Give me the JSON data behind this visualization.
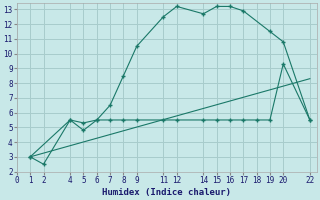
{
  "xlabel": "Humidex (Indice chaleur)",
  "bg_color": "#c8e8e8",
  "grid_color": "#a8cccc",
  "line_color": "#1a7868",
  "xlim": [
    0,
    22.5
  ],
  "ylim": [
    2,
    13.4
  ],
  "xticks": [
    0,
    1,
    2,
    4,
    5,
    6,
    7,
    8,
    9,
    11,
    12,
    14,
    15,
    16,
    17,
    18,
    19,
    20,
    22
  ],
  "yticks": [
    2,
    3,
    4,
    5,
    6,
    7,
    8,
    9,
    10,
    11,
    12,
    13
  ],
  "line1_x": [
    1,
    2,
    4,
    5,
    6,
    7,
    8,
    9,
    11,
    12,
    14,
    15,
    16,
    17,
    19,
    20,
    22
  ],
  "line1_y": [
    3.0,
    2.5,
    5.5,
    4.8,
    5.5,
    6.5,
    8.5,
    10.5,
    12.5,
    13.2,
    12.7,
    13.2,
    13.2,
    12.9,
    11.5,
    10.8,
    5.5
  ],
  "line2_x": [
    1,
    4,
    5,
    6,
    7,
    8,
    9,
    11,
    12,
    14,
    15,
    16,
    17,
    18,
    19,
    20,
    22
  ],
  "line2_y": [
    3.0,
    5.5,
    5.3,
    5.5,
    5.5,
    5.5,
    5.5,
    5.5,
    5.5,
    5.5,
    5.5,
    5.5,
    5.5,
    5.5,
    5.5,
    9.3,
    5.5
  ],
  "line3_x": [
    1,
    22
  ],
  "line3_y": [
    3.0,
    8.3
  ]
}
